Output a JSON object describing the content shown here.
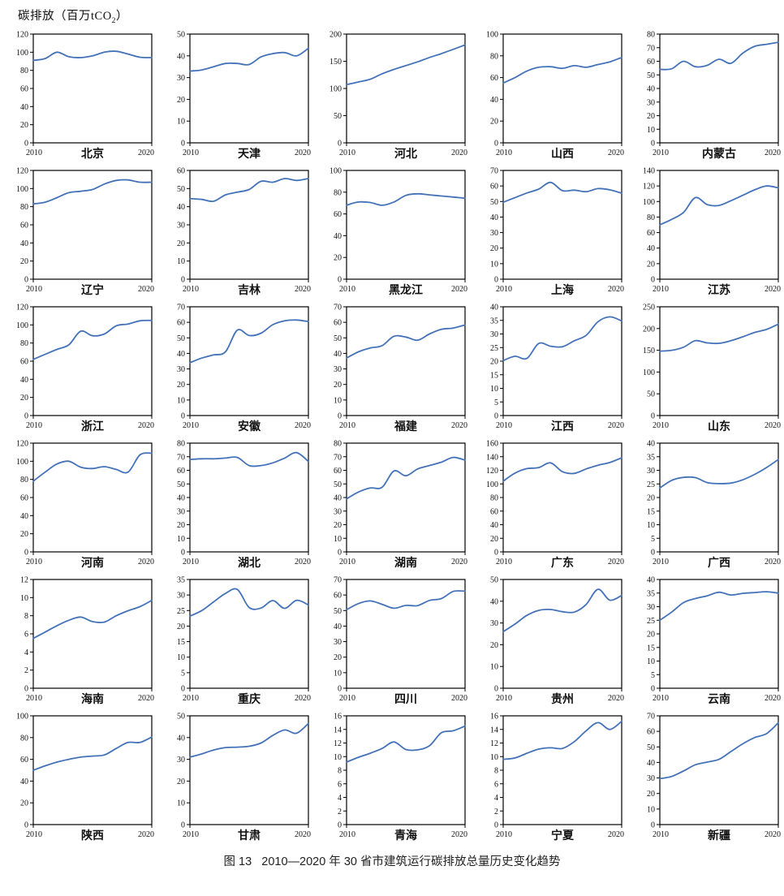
{
  "header": {
    "unit_prefix": "碳排放（百万tCO",
    "unit_sub": "2",
    "unit_suffix": "）"
  },
  "caption": "图 13   2010—2020 年 30 省市建筑运行碳排放总量历史变化趋势",
  "chart_common": {
    "x_years": [
      2010,
      2011,
      2012,
      2013,
      2014,
      2015,
      2016,
      2017,
      2018,
      2019,
      2020
    ],
    "x_start_label": "2010",
    "x_end_label": "2020",
    "line_color": "#4472B8",
    "unit": "百万tCO2",
    "grid_layout": "6 rows x 5 columns",
    "legend": "none",
    "gridlines": "off"
  },
  "chart_data": [
    {
      "type": "line",
      "title": "北京",
      "xlim": [
        2010,
        2020
      ],
      "ylim": [
        0,
        120
      ],
      "ystep": 20,
      "values": [
        91,
        93,
        100,
        95,
        94,
        96,
        100,
        101,
        98,
        94.5,
        94
      ]
    },
    {
      "type": "line",
      "title": "天津",
      "xlim": [
        2010,
        2020
      ],
      "ylim": [
        0,
        50
      ],
      "ystep": 10,
      "values": [
        33,
        33.5,
        35,
        36.5,
        36.5,
        36,
        39.5,
        41,
        41.5,
        40,
        43.5
      ]
    },
    {
      "type": "line",
      "title": "河北",
      "xlim": [
        2010,
        2020
      ],
      "ylim": [
        0,
        200
      ],
      "ystep": 50,
      "values": [
        107,
        112,
        117,
        127,
        135,
        142,
        149,
        157,
        164,
        172,
        180
      ]
    },
    {
      "type": "line",
      "title": "山西",
      "xlim": [
        2010,
        2020
      ],
      "ylim": [
        0,
        100
      ],
      "ystep": 20,
      "values": [
        55,
        60,
        66,
        69.5,
        70,
        68.5,
        71,
        69.5,
        72,
        74.5,
        78.5
      ]
    },
    {
      "type": "line",
      "title": "内蒙古",
      "xlim": [
        2010,
        2020
      ],
      "ylim": [
        0,
        80
      ],
      "ystep": 10,
      "values": [
        54,
        54.5,
        60,
        56,
        57,
        61.5,
        58.5,
        66,
        71,
        72.5,
        74
      ]
    },
    {
      "type": "line",
      "title": "辽宁",
      "xlim": [
        2010,
        2020
      ],
      "ylim": [
        0,
        120
      ],
      "ystep": 20,
      "values": [
        83,
        85,
        90,
        95.5,
        97,
        99,
        105,
        109,
        109.5,
        107,
        107
      ]
    },
    {
      "type": "line",
      "title": "吉林",
      "xlim": [
        2010,
        2020
      ],
      "ylim": [
        0,
        60
      ],
      "ystep": 10,
      "values": [
        44.5,
        44,
        43,
        46.5,
        48,
        49.5,
        54,
        53.5,
        55.5,
        54.5,
        55.5
      ]
    },
    {
      "type": "line",
      "title": "黑龙江",
      "xlim": [
        2010,
        2020
      ],
      "ylim": [
        0,
        100
      ],
      "ystep": 20,
      "values": [
        68,
        71,
        70.5,
        68,
        71,
        77,
        78.5,
        77.5,
        76.5,
        75.5,
        74.5
      ]
    },
    {
      "type": "line",
      "title": "上海",
      "xlim": [
        2010,
        2020
      ],
      "ylim": [
        0,
        70
      ],
      "ystep": 10,
      "values": [
        49.5,
        52.5,
        55.5,
        58,
        62.3,
        57,
        57.3,
        56.3,
        58.3,
        57.5,
        55.3
      ]
    },
    {
      "type": "line",
      "title": "江苏",
      "xlim": [
        2010,
        2020
      ],
      "ylim": [
        0,
        140
      ],
      "ystep": 20,
      "values": [
        70,
        77,
        86,
        105,
        96,
        95,
        101,
        108,
        115,
        120,
        117.5
      ]
    },
    {
      "type": "line",
      "title": "浙江",
      "xlim": [
        2010,
        2020
      ],
      "ylim": [
        0,
        120
      ],
      "ystep": 20,
      "values": [
        62,
        67.5,
        73,
        78,
        93,
        88,
        90,
        99,
        101,
        104.5,
        105
      ]
    },
    {
      "type": "line",
      "title": "安徽",
      "xlim": [
        2010,
        2020
      ],
      "ylim": [
        0,
        70
      ],
      "ystep": 10,
      "values": [
        34,
        37,
        39,
        41,
        55,
        51.5,
        53,
        58.5,
        61,
        61.5,
        60.5
      ]
    },
    {
      "type": "line",
      "title": "福建",
      "xlim": [
        2010,
        2020
      ],
      "ylim": [
        0,
        70
      ],
      "ystep": 10,
      "values": [
        37,
        41,
        43.5,
        45,
        51,
        50.5,
        48.5,
        52.5,
        55.5,
        56.3,
        58.3
      ]
    },
    {
      "type": "line",
      "title": "江西",
      "xlim": [
        2010,
        2020
      ],
      "ylim": [
        0,
        40
      ],
      "ystep": 5,
      "values": [
        20.2,
        21.8,
        21,
        26.5,
        25.5,
        25.3,
        27.5,
        29.5,
        34.5,
        36.3,
        34.8
      ]
    },
    {
      "type": "line",
      "title": "山东",
      "xlim": [
        2010,
        2020
      ],
      "ylim": [
        0,
        250
      ],
      "ystep": 50,
      "values": [
        148,
        150,
        157,
        172,
        167,
        166,
        172,
        181,
        191,
        198,
        210
      ]
    },
    {
      "type": "line",
      "title": "河南",
      "xlim": [
        2010,
        2020
      ],
      "ylim": [
        0,
        120
      ],
      "ystep": 20,
      "values": [
        78,
        88,
        97,
        100,
        93.5,
        92,
        94,
        91,
        88,
        107,
        109
      ]
    },
    {
      "type": "line",
      "title": "湖北",
      "xlim": [
        2010,
        2020
      ],
      "ylim": [
        0,
        80
      ],
      "ystep": 10,
      "values": [
        68,
        68.5,
        68.5,
        69,
        69.5,
        63.5,
        63.5,
        65.5,
        69,
        73,
        66.5
      ]
    },
    {
      "type": "line",
      "title": "湖南",
      "xlim": [
        2010,
        2020
      ],
      "ylim": [
        0,
        80
      ],
      "ystep": 10,
      "values": [
        39,
        44,
        47,
        47.5,
        59.5,
        56,
        61,
        63.5,
        66,
        69.5,
        67.5
      ]
    },
    {
      "type": "line",
      "title": "广东",
      "xlim": [
        2010,
        2020
      ],
      "ylim": [
        0,
        160
      ],
      "ystep": 20,
      "values": [
        104,
        116,
        122.5,
        124,
        131,
        118,
        115.5,
        122,
        127.5,
        131.5,
        138.5
      ]
    },
    {
      "type": "line",
      "title": "广西",
      "xlim": [
        2010,
        2020
      ],
      "ylim": [
        0,
        40
      ],
      "ystep": 5,
      "values": [
        23.5,
        26.3,
        27.4,
        27.3,
        25.5,
        25.1,
        25.3,
        26.5,
        28.5,
        31,
        34
      ]
    },
    {
      "type": "line",
      "title": "海南",
      "xlim": [
        2010,
        2020
      ],
      "ylim": [
        0,
        12
      ],
      "ystep": 2,
      "values": [
        5.5,
        6.2,
        6.9,
        7.5,
        7.85,
        7.35,
        7.3,
        8.0,
        8.55,
        9.0,
        9.7
      ]
    },
    {
      "type": "line",
      "title": "重庆",
      "xlim": [
        2010,
        2020
      ],
      "ylim": [
        0,
        35
      ],
      "ystep": 5,
      "values": [
        23.2,
        25,
        27.8,
        30.5,
        31.8,
        26,
        25.8,
        28.2,
        25.7,
        28.3,
        26.8
      ]
    },
    {
      "type": "line",
      "title": "四川",
      "xlim": [
        2010,
        2020
      ],
      "ylim": [
        0,
        70
      ],
      "ystep": 10,
      "values": [
        50.5,
        54.5,
        56.2,
        54,
        51.5,
        53.3,
        53.2,
        56.5,
        57.7,
        62.3,
        62.5
      ]
    },
    {
      "type": "line",
      "title": "贵州",
      "xlim": [
        2010,
        2020
      ],
      "ylim": [
        0,
        50
      ],
      "ystep": 10,
      "values": [
        26,
        29.5,
        33.5,
        35.8,
        36.2,
        35.2,
        35,
        38.5,
        45.5,
        40.5,
        42.7
      ]
    },
    {
      "type": "line",
      "title": "云南",
      "xlim": [
        2010,
        2020
      ],
      "ylim": [
        0,
        40
      ],
      "ystep": 5,
      "values": [
        25,
        28,
        31.5,
        33,
        34,
        35.3,
        34.3,
        34.9,
        35.2,
        35.5,
        35
      ]
    },
    {
      "type": "line",
      "title": "陕西",
      "xlim": [
        2010,
        2020
      ],
      "ylim": [
        0,
        100
      ],
      "ystep": 20,
      "values": [
        50,
        54,
        57.5,
        60,
        62,
        63,
        64,
        70,
        75.5,
        75.5,
        80.5
      ]
    },
    {
      "type": "line",
      "title": "甘肃",
      "xlim": [
        2010,
        2020
      ],
      "ylim": [
        0,
        50
      ],
      "ystep": 10,
      "values": [
        31,
        32.5,
        34.3,
        35.4,
        35.6,
        36,
        37.5,
        41,
        43.5,
        42,
        46.5
      ]
    },
    {
      "type": "line",
      "title": "青海",
      "xlim": [
        2010,
        2020
      ],
      "ylim": [
        0,
        16
      ],
      "ystep": 2,
      "values": [
        9.2,
        9.9,
        10.5,
        11.2,
        12.15,
        11.05,
        11,
        11.6,
        13.5,
        13.8,
        14.5
      ]
    },
    {
      "type": "line",
      "title": "宁夏",
      "xlim": [
        2010,
        2020
      ],
      "ylim": [
        0,
        16
      ],
      "ystep": 2,
      "values": [
        9.6,
        9.8,
        10.5,
        11.1,
        11.3,
        11.2,
        12.2,
        13.8,
        15,
        14,
        15.2
      ]
    },
    {
      "type": "line",
      "title": "新疆",
      "xlim": [
        2010,
        2020
      ],
      "ylim": [
        0,
        70
      ],
      "ystep": 10,
      "values": [
        29.5,
        31,
        34.5,
        38.5,
        40.2,
        42,
        47,
        52,
        56,
        58.5,
        65.5
      ]
    }
  ]
}
